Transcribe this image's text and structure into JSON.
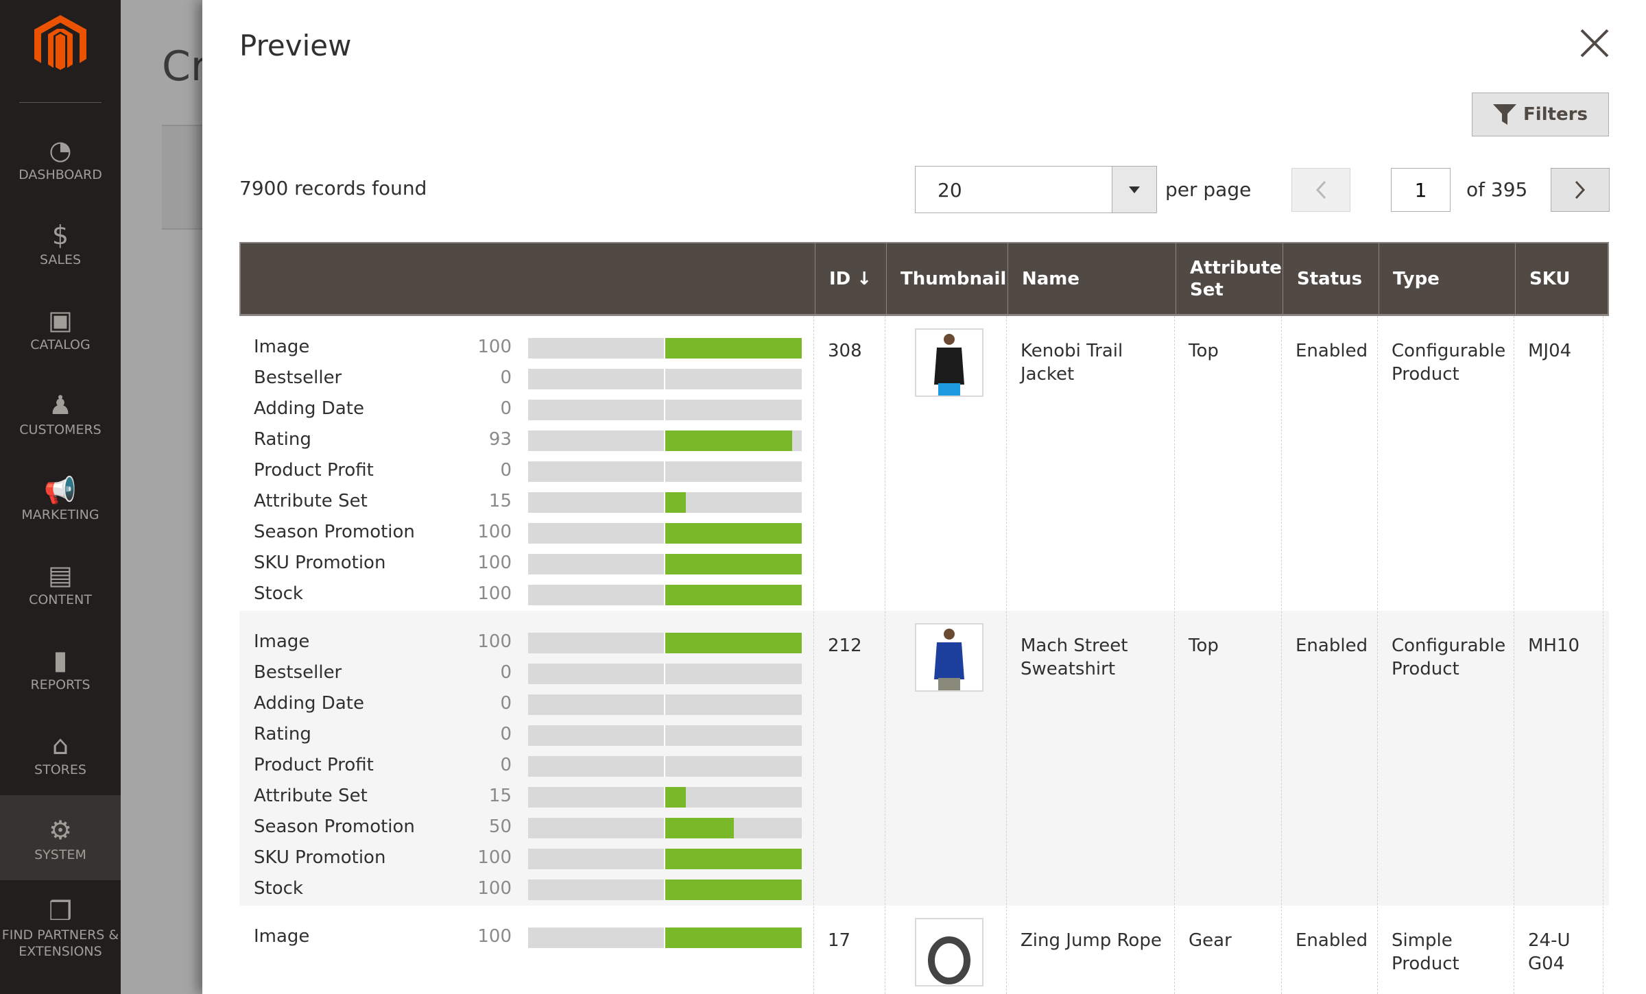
{
  "sidebar": {
    "items": [
      {
        "label": "DASHBOARD",
        "icon": "dashboard-icon"
      },
      {
        "label": "SALES",
        "icon": "dollar-icon"
      },
      {
        "label": "CATALOG",
        "icon": "box-icon"
      },
      {
        "label": "CUSTOMERS",
        "icon": "person-icon"
      },
      {
        "label": "MARKETING",
        "icon": "megaphone-icon"
      },
      {
        "label": "CONTENT",
        "icon": "layout-icon"
      },
      {
        "label": "REPORTS",
        "icon": "bar-chart-icon"
      },
      {
        "label": "STORES",
        "icon": "store-icon"
      },
      {
        "label": "SYSTEM",
        "icon": "gear-icon",
        "active": true
      },
      {
        "label": "FIND PARTNERS & EXTENSIONS",
        "icon": "blocks-icon"
      }
    ]
  },
  "background": {
    "title": "Cr"
  },
  "modal": {
    "title": "Preview",
    "filters_label": "Filters",
    "records": "7900 records found",
    "per_page_value": "20",
    "per_page_label": "per page",
    "page": "1",
    "page_of": "of 395"
  },
  "colors": {
    "accent": "#eb5202",
    "bar_fill": "#79b829",
    "header_bg": "#514943"
  },
  "table": {
    "headers": [
      "ID ↓",
      "Thumbnail",
      "Name",
      "Attribute Set",
      "Status",
      "Type",
      "SKU"
    ],
    "rows": [
      {
        "id": "308",
        "name": "Kenobi Trail Jacket",
        "attribute_set": "Top",
        "status": "Enabled",
        "type": "Configurable Product",
        "sku": "MJ04",
        "scores": [
          {
            "label": "Image",
            "value": 100
          },
          {
            "label": "Bestseller",
            "value": 0
          },
          {
            "label": "Adding Date",
            "value": 0
          },
          {
            "label": "Rating",
            "value": 93
          },
          {
            "label": "Product Profit",
            "value": 0
          },
          {
            "label": "Attribute Set",
            "value": 15
          },
          {
            "label": "Season Promotion",
            "value": 100
          },
          {
            "label": "SKU Promotion",
            "value": 100
          },
          {
            "label": "Stock",
            "value": 100
          }
        ]
      },
      {
        "id": "212",
        "name": "Mach Street Sweatshirt",
        "attribute_set": "Top",
        "status": "Enabled",
        "type": "Configurable Product",
        "sku": "MH10",
        "scores": [
          {
            "label": "Image",
            "value": 100
          },
          {
            "label": "Bestseller",
            "value": 0
          },
          {
            "label": "Adding Date",
            "value": 0
          },
          {
            "label": "Rating",
            "value": 0
          },
          {
            "label": "Product Profit",
            "value": 0
          },
          {
            "label": "Attribute Set",
            "value": 15
          },
          {
            "label": "Season Promotion",
            "value": 50
          },
          {
            "label": "SKU Promotion",
            "value": 100
          },
          {
            "label": "Stock",
            "value": 100
          }
        ]
      },
      {
        "id": "17",
        "name": "Zing Jump Rope",
        "attribute_set": "Gear",
        "status": "Enabled",
        "type": "Simple Product",
        "sku": "24-UG04",
        "scores": [
          {
            "label": "Image",
            "value": 100
          }
        ]
      }
    ]
  }
}
